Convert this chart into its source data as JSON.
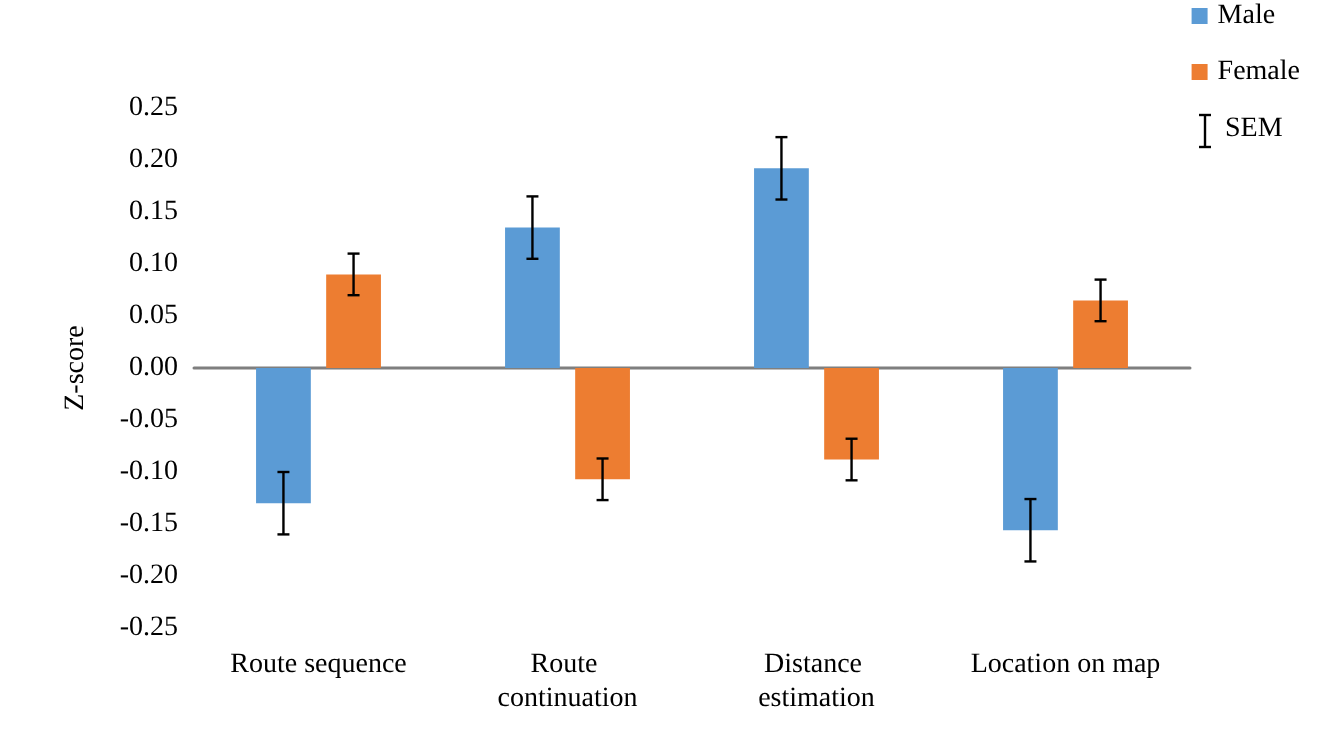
{
  "chart_data": {
    "type": "bar",
    "ylabel": "Z-score",
    "categories": [
      "Route sequence",
      "Route continuation",
      "Distance estimation",
      "Location on map"
    ],
    "series": [
      {
        "name": "Male",
        "color": "#5b9bd5",
        "values": [
          -0.13,
          0.135,
          0.192,
          -0.156
        ],
        "errors": [
          0.03,
          0.03,
          0.03,
          0.03
        ]
      },
      {
        "name": "Female",
        "color": "#ed7d31",
        "values": [
          0.09,
          -0.107,
          -0.088,
          0.065
        ],
        "errors": [
          0.02,
          0.02,
          0.02,
          0.02
        ]
      }
    ],
    "ylim": [
      -0.25,
      0.25
    ],
    "yticks": [
      {
        "value": -0.25,
        "label": "-0.25"
      },
      {
        "value": -0.2,
        "label": "-0.20"
      },
      {
        "value": -0.15,
        "label": "-0.15"
      },
      {
        "value": -0.1,
        "label": "-0.10"
      },
      {
        "value": -0.05,
        "label": "-0.05"
      },
      {
        "value": 0,
        "label": "0.00"
      },
      {
        "value": 0.05,
        "label": "0.05"
      },
      {
        "value": 0.1,
        "label": "0.10"
      },
      {
        "value": 0.15,
        "label": "0.15"
      },
      {
        "value": 0.2,
        "label": "0.20"
      },
      {
        "value": 0.25,
        "label": "0.25"
      }
    ],
    "annotations": [
      "SEM"
    ],
    "legend": "top right"
  }
}
